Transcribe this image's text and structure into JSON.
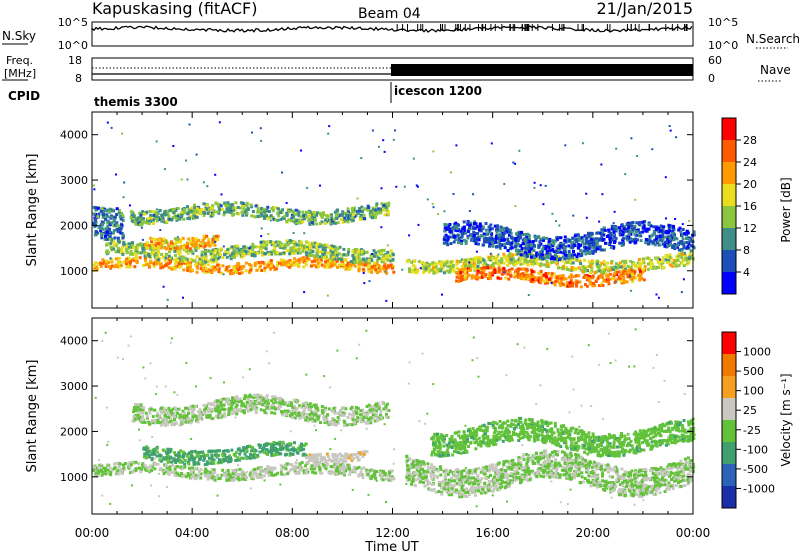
{
  "header": {
    "station": "Kapuskasing (fitACF)",
    "beam": "Beam 04",
    "date": "21/Jan/2015"
  },
  "top_panels": {
    "nsky_label": "N.Sky",
    "nsky_ticks": [
      "10^5",
      "10^0"
    ],
    "nsearch_label": "N.Search",
    "nsearch_ticks": [
      "10^5",
      "10^0"
    ],
    "freq_label_1": "Freq.",
    "freq_label_2": "[MHz]",
    "freq_ticks": [
      "18",
      "8"
    ],
    "nave_label": "Nave",
    "nave_ticks": [
      "60",
      "0"
    ],
    "cpid_label": "CPID",
    "cpid_segments": [
      {
        "name": "themis 3300",
        "start_hour": 0,
        "end_hour": 12
      },
      {
        "name": "icescon 1200",
        "start_hour": 12,
        "end_hour": 24
      }
    ]
  },
  "colorbars": {
    "power": {
      "label": "Power [dB]",
      "ticks": [
        "28",
        "24",
        "20",
        "16",
        "12",
        "8",
        "4"
      ],
      "colors": [
        "#0000ff",
        "#1c4fb8",
        "#3f8f86",
        "#8cc63f",
        "#e8de1e",
        "#ff9a00",
        "#ff5a00",
        "#ff0000"
      ]
    },
    "velocity": {
      "label": "Velocity [m s⁻¹]",
      "ticks": [
        "1000",
        "500",
        "100",
        "25",
        "-25",
        "-100",
        "-500",
        "-1000"
      ],
      "colors": [
        "#1a2fa8",
        "#2a63b8",
        "#3fa070",
        "#62c23a",
        "#c8c8c0",
        "#f5a020",
        "#f07a00",
        "#ff0000"
      ]
    }
  },
  "x_axis": {
    "label": "Time UT",
    "tick_labels": [
      "00:00",
      "04:00",
      "08:00",
      "12:00",
      "16:00",
      "20:00",
      "00:00"
    ]
  },
  "chart_data": [
    {
      "type": "heatmap",
      "title": "",
      "ylabel": "Slant Range [km]",
      "xlabel": "",
      "xlim": [
        0,
        24
      ],
      "ylim": [
        180,
        4500
      ],
      "y_ticks": [
        1000,
        2000,
        3000,
        4000
      ],
      "colorbar": "Power [dB]",
      "colorbar_range": [
        0,
        32
      ],
      "bands": [
        {
          "t_start": 0.0,
          "t_end": 12.0,
          "r_center": 1150,
          "r_width": 220,
          "value": 22
        },
        {
          "t_start": 0.5,
          "t_end": 12.0,
          "r_center": 1450,
          "r_width": 300,
          "value": 14
        },
        {
          "t_start": 2.0,
          "t_end": 5.0,
          "r_center": 1700,
          "r_width": 250,
          "value": 20
        },
        {
          "t_start": 1.5,
          "t_end": 11.8,
          "r_center": 2300,
          "r_width": 300,
          "value": 12
        },
        {
          "t_start": 0.0,
          "t_end": 1.2,
          "r_center": 2300,
          "r_width": 700,
          "value": 8
        },
        {
          "t_start": 12.5,
          "t_end": 24.0,
          "r_center": 1200,
          "r_width": 280,
          "value": 16
        },
        {
          "t_start": 14.5,
          "t_end": 22.0,
          "r_center": 900,
          "r_width": 260,
          "value": 24
        },
        {
          "t_start": 14.0,
          "t_end": 24.0,
          "r_center": 1700,
          "r_width": 500,
          "value": 6
        }
      ]
    },
    {
      "type": "heatmap",
      "title": "",
      "ylabel": "Slant Range [km]",
      "xlabel": "Time UT",
      "xlim": [
        0,
        24
      ],
      "ylim": [
        180,
        4500
      ],
      "y_ticks": [
        1000,
        2000,
        3000,
        4000
      ],
      "colorbar": "Velocity [m s⁻¹]",
      "colorbar_range": [
        -1000,
        1000
      ],
      "bands": [
        {
          "t_start": 0.0,
          "t_end": 12.0,
          "r_center": 1150,
          "r_width": 240,
          "value": 0
        },
        {
          "t_start": 2.0,
          "t_end": 8.5,
          "r_center": 1550,
          "r_width": 300,
          "value": -300
        },
        {
          "t_start": 1.5,
          "t_end": 11.8,
          "r_center": 2500,
          "r_width": 400,
          "value": 0
        },
        {
          "t_start": 8.5,
          "t_end": 11.0,
          "r_center": 1500,
          "r_width": 200,
          "value": 150
        },
        {
          "t_start": 12.5,
          "t_end": 24.0,
          "r_center": 1100,
          "r_width": 600,
          "value": 0
        },
        {
          "t_start": 13.5,
          "t_end": 24.0,
          "r_center": 1900,
          "r_width": 500,
          "value": -150
        }
      ]
    }
  ]
}
